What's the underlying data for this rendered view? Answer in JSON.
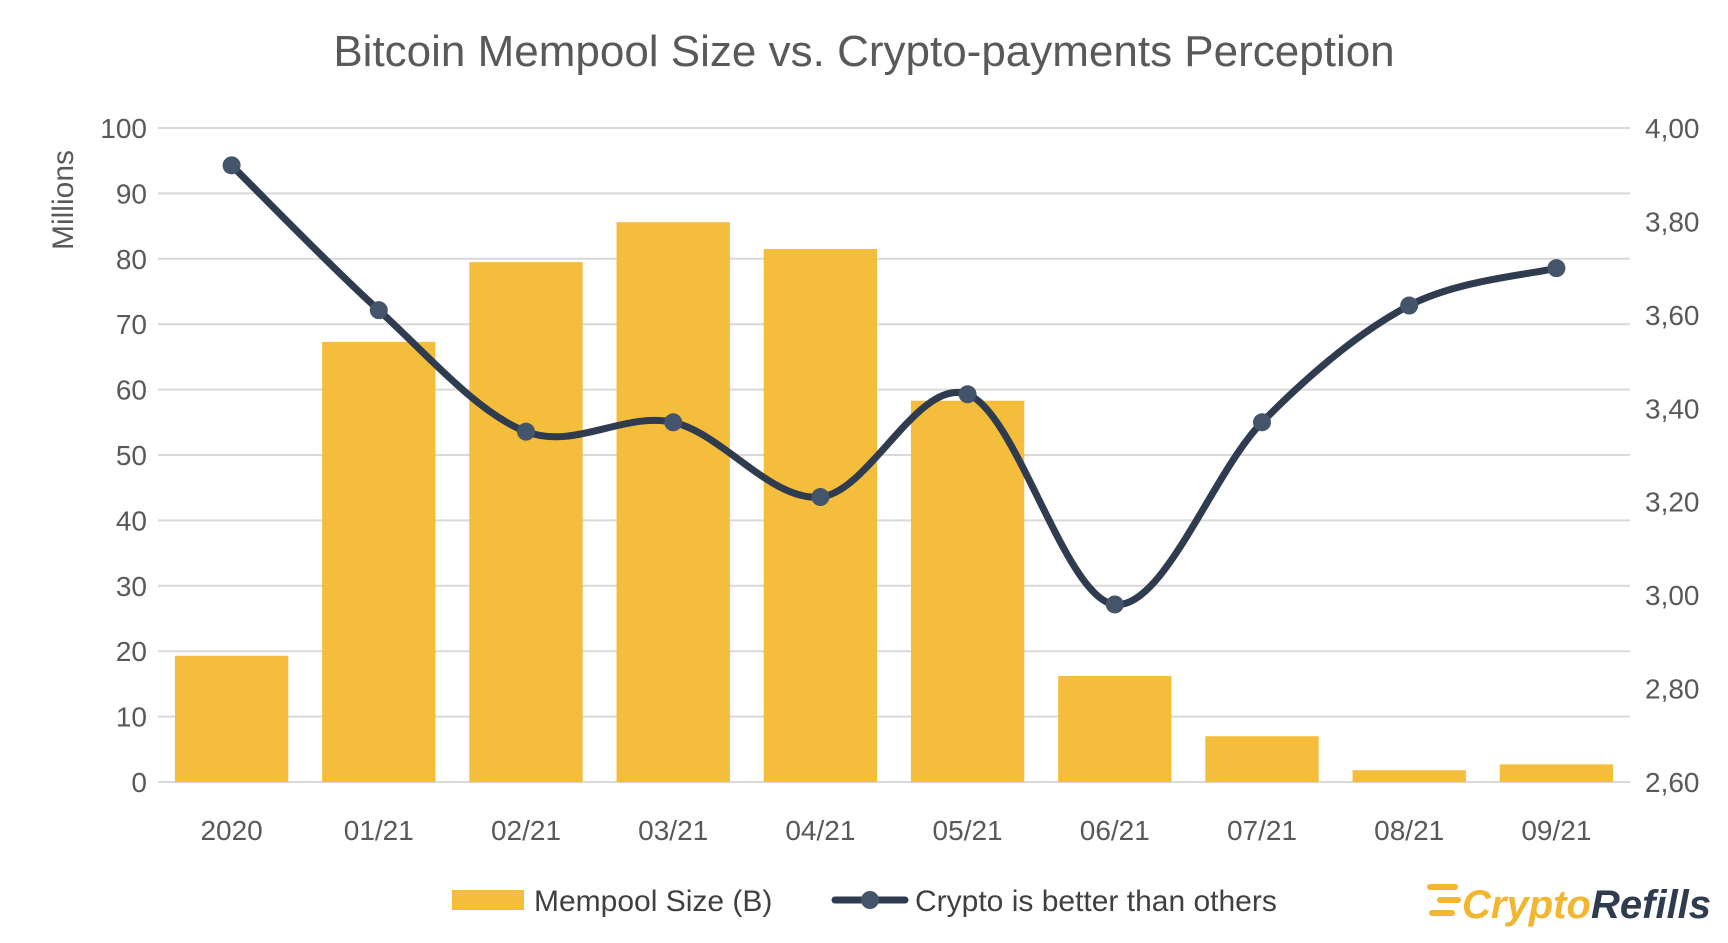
{
  "chart_data": {
    "type": "bar",
    "title": "Bitcoin Mempool Size vs. Crypto-payments Perception",
    "categories": [
      "2020",
      "01/21",
      "02/21",
      "03/21",
      "04/21",
      "05/21",
      "06/21",
      "07/21",
      "08/21",
      "09/21"
    ],
    "series": [
      {
        "name": "Mempool Size (B)",
        "type": "bar",
        "axis": "left",
        "color": "#f5bd3c",
        "values": [
          19.3,
          67.3,
          79.5,
          85.6,
          81.5,
          58.3,
          16.2,
          7.0,
          1.8,
          2.7
        ]
      },
      {
        "name": "Crypto is better than others",
        "type": "line",
        "axis": "right",
        "color": "#2f3b4f",
        "marker_color": "#44546a",
        "smooth": true,
        "values": [
          3.92,
          3.61,
          3.35,
          3.37,
          3.21,
          3.43,
          2.98,
          3.37,
          3.62,
          3.7
        ]
      }
    ],
    "ylabel_left": "Millions",
    "ylim_left": [
      0,
      100
    ],
    "yticks_left": [
      "0",
      "10",
      "20",
      "30",
      "40",
      "50",
      "60",
      "70",
      "80",
      "90",
      "100"
    ],
    "ylim_right": [
      2.6,
      4.0
    ],
    "yticks_right": [
      "2,60",
      "2,80",
      "3,00",
      "3,20",
      "3,40",
      "3,60",
      "3,80",
      "4,00"
    ],
    "grid": true,
    "legend_position": "bottom"
  },
  "logo": {
    "text_a": "Crypto",
    "text_b": "Refills",
    "color_a": "#f2b630",
    "color_b": "#2f3b4f"
  }
}
